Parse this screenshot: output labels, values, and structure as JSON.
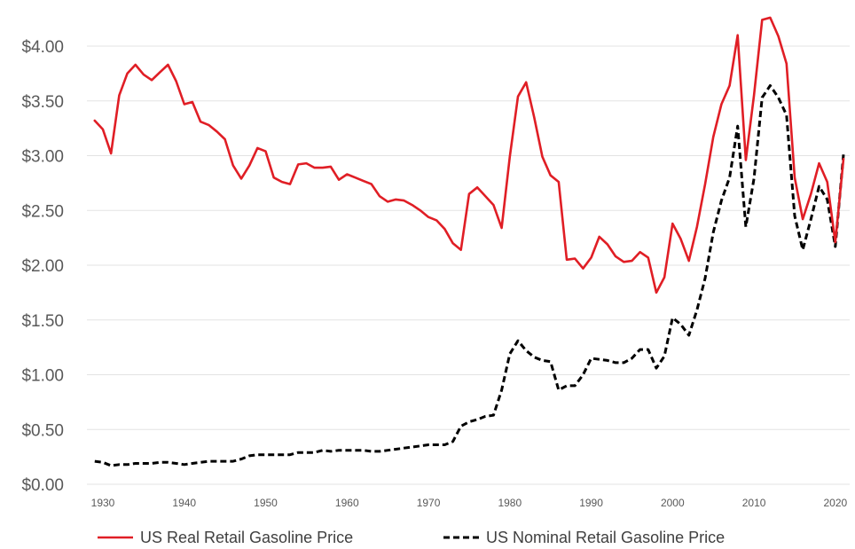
{
  "chart_data": {
    "type": "line",
    "title": "",
    "xlabel": "",
    "ylabel": "",
    "xlim": [
      1928,
      2022
    ],
    "ylim": [
      0,
      4.2
    ],
    "grid": "horizontal",
    "legend": "bottom",
    "x_ticks": [
      1930,
      1940,
      1950,
      1960,
      1970,
      1980,
      1990,
      2000,
      2010,
      2020
    ],
    "x_tick_labels": [
      "1930",
      "1940",
      "1950",
      "1960",
      "1970",
      "1980",
      "1990",
      "2000",
      "2010",
      "2020"
    ],
    "y_ticks": [
      0,
      0.5,
      1.0,
      1.5,
      2.0,
      2.5,
      3.0,
      3.5,
      4.0
    ],
    "y_tick_labels": [
      "$0.00",
      "$0.50",
      "$1.00",
      "$1.50",
      "$2.00",
      "$2.50",
      "$3.00",
      "$3.50",
      "$4.00"
    ],
    "x": [
      1929,
      1930,
      1931,
      1932,
      1933,
      1934,
      1935,
      1936,
      1937,
      1938,
      1939,
      1940,
      1941,
      1942,
      1943,
      1944,
      1945,
      1946,
      1947,
      1948,
      1949,
      1950,
      1951,
      1952,
      1953,
      1954,
      1955,
      1956,
      1957,
      1958,
      1959,
      1960,
      1961,
      1962,
      1963,
      1964,
      1965,
      1966,
      1967,
      1968,
      1969,
      1970,
      1971,
      1972,
      1973,
      1974,
      1975,
      1976,
      1977,
      1978,
      1979,
      1980,
      1981,
      1982,
      1983,
      1984,
      1985,
      1986,
      1987,
      1988,
      1989,
      1990,
      1991,
      1992,
      1993,
      1994,
      1995,
      1996,
      1997,
      1998,
      1999,
      2000,
      2001,
      2002,
      2003,
      2004,
      2005,
      2006,
      2007,
      2008,
      2009,
      2010,
      2011,
      2012,
      2013,
      2014,
      2015,
      2016,
      2017,
      2018,
      2019,
      2020,
      2021
    ],
    "series": [
      {
        "name": "US Real Retail Gasoline Price",
        "color": "#e01e25",
        "dash": "solid",
        "values": [
          3.32,
          3.24,
          3.02,
          3.55,
          3.75,
          3.83,
          3.74,
          3.69,
          3.76,
          3.83,
          3.68,
          3.47,
          3.49,
          3.31,
          3.28,
          3.22,
          3.15,
          2.91,
          2.79,
          2.91,
          3.07,
          3.04,
          2.8,
          2.76,
          2.74,
          2.92,
          2.93,
          2.89,
          2.89,
          2.9,
          2.78,
          2.83,
          2.8,
          2.77,
          2.74,
          2.63,
          2.58,
          2.6,
          2.59,
          2.55,
          2.5,
          2.44,
          2.41,
          2.33,
          2.2,
          2.14,
          2.65,
          2.71,
          2.63,
          2.55,
          2.34,
          2.99,
          3.54,
          3.67,
          3.35,
          2.99,
          2.82,
          2.76,
          2.05,
          2.06,
          1.97,
          2.07,
          2.26,
          2.19,
          2.08,
          2.03,
          2.04,
          2.12,
          2.07,
          1.75,
          1.89,
          2.38,
          2.24,
          2.04,
          2.35,
          2.74,
          3.17,
          3.47,
          3.64,
          4.1,
          2.96,
          3.55,
          4.24,
          4.26,
          4.09,
          3.84,
          2.8,
          2.42,
          2.65,
          2.93,
          2.76,
          2.21,
          2.97
        ]
      },
      {
        "name": "US Nominal Retail Gasoline Price",
        "color": "#000000",
        "dash": "dashed",
        "values": [
          0.21,
          0.2,
          0.17,
          0.18,
          0.18,
          0.19,
          0.19,
          0.19,
          0.2,
          0.2,
          0.19,
          0.18,
          0.19,
          0.2,
          0.21,
          0.21,
          0.21,
          0.21,
          0.23,
          0.26,
          0.27,
          0.27,
          0.27,
          0.27,
          0.27,
          0.29,
          0.29,
          0.29,
          0.31,
          0.3,
          0.31,
          0.31,
          0.31,
          0.31,
          0.3,
          0.3,
          0.31,
          0.32,
          0.33,
          0.34,
          0.35,
          0.36,
          0.36,
          0.36,
          0.39,
          0.53,
          0.57,
          0.59,
          0.62,
          0.63,
          0.86,
          1.19,
          1.31,
          1.22,
          1.16,
          1.13,
          1.12,
          0.86,
          0.9,
          0.9,
          1.0,
          1.15,
          1.14,
          1.13,
          1.11,
          1.11,
          1.15,
          1.23,
          1.23,
          1.06,
          1.17,
          1.52,
          1.46,
          1.36,
          1.59,
          1.88,
          2.3,
          2.59,
          2.8,
          3.27,
          2.35,
          2.79,
          3.53,
          3.64,
          3.53,
          3.37,
          2.45,
          2.14,
          2.42,
          2.72,
          2.6,
          2.17,
          3.01
        ]
      }
    ]
  }
}
